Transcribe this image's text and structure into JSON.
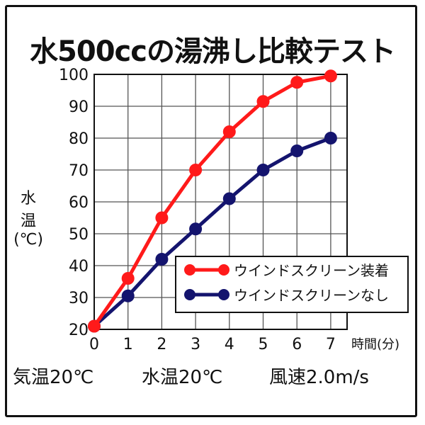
{
  "chart_data": {
    "type": "line",
    "title": "水500ccの湯沸し比較テスト",
    "xlabel": "時間(分)",
    "ylabel": [
      "水",
      "温",
      "(℃)"
    ],
    "x": [
      0,
      1,
      2,
      3,
      4,
      5,
      6,
      7
    ],
    "xlim": [
      0,
      7.5
    ],
    "ylim": [
      20,
      100
    ],
    "yticks": [
      20,
      30,
      40,
      50,
      60,
      70,
      80,
      90,
      100
    ],
    "xticks": [
      0,
      1,
      2,
      3,
      4,
      5,
      6,
      7
    ],
    "grid": true,
    "legend_position": "bottom-right",
    "series": [
      {
        "name": "ウインドスクリーン装着",
        "color": "#ff1a1a",
        "values": [
          21,
          36,
          55,
          70,
          82,
          91.5,
          97.5,
          99.5
        ]
      },
      {
        "name": "ウインドスクリーンなし",
        "color": "#14146e",
        "values": [
          21,
          30.5,
          42,
          51.5,
          61,
          70,
          76,
          80
        ]
      }
    ]
  },
  "conditions": [
    "気温20℃",
    "水温20℃",
    "風速2.0m/s"
  ]
}
